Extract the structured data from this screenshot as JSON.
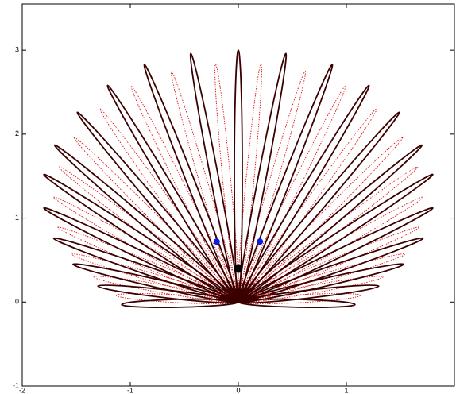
{
  "chart_data": {
    "type": "petals",
    "xlim": [
      -2,
      2
    ],
    "ylim": [
      -1,
      3.55
    ],
    "xticks": [
      -2,
      -1,
      0,
      1
    ],
    "yticks": [
      -1,
      0,
      1,
      2,
      3
    ],
    "series": [
      {
        "style": "solid",
        "color": "#3a0000",
        "x": [
          -1.08,
          -1.3,
          -1.53,
          -1.71,
          -1.8,
          -1.8,
          -1.7,
          -1.49,
          -1.21,
          -0.87,
          -0.44,
          0,
          0.44,
          0.87,
          1.21,
          1.49,
          1.7,
          1.8,
          1.8,
          1.71,
          1.53,
          1.3,
          1.08
        ],
        "y": [
          -0.03,
          0.19,
          0.45,
          0.76,
          1.12,
          1.52,
          1.87,
          2.26,
          2.58,
          2.83,
          2.96,
          3.0,
          2.96,
          2.83,
          2.58,
          2.26,
          1.87,
          1.52,
          1.12,
          0.76,
          0.45,
          0.19,
          -0.03
        ]
      },
      {
        "style": "dotted",
        "color": "#e01010",
        "x": [
          -1.13,
          -1.34,
          -1.54,
          -1.67,
          -1.71,
          -1.66,
          -1.52,
          -1.28,
          -0.99,
          -0.62,
          -0.21,
          0.21,
          0.62,
          0.99,
          1.28,
          1.52,
          1.66,
          1.71,
          1.67,
          1.54,
          1.34,
          1.13
        ],
        "y": [
          0.08,
          0.3,
          0.57,
          0.89,
          1.25,
          1.61,
          1.96,
          2.3,
          2.57,
          2.75,
          2.83,
          2.83,
          2.75,
          2.57,
          2.3,
          1.96,
          1.61,
          1.25,
          0.89,
          0.57,
          0.3,
          0.08
        ]
      },
      {
        "style": "marker",
        "color": "#0a1ee0",
        "x": [
          -0.2,
          0.2
        ],
        "y": [
          0.72,
          0.72
        ]
      },
      {
        "style": "marker",
        "color": "#000000",
        "x": [
          0
        ],
        "y": [
          0.4
        ]
      }
    ]
  }
}
